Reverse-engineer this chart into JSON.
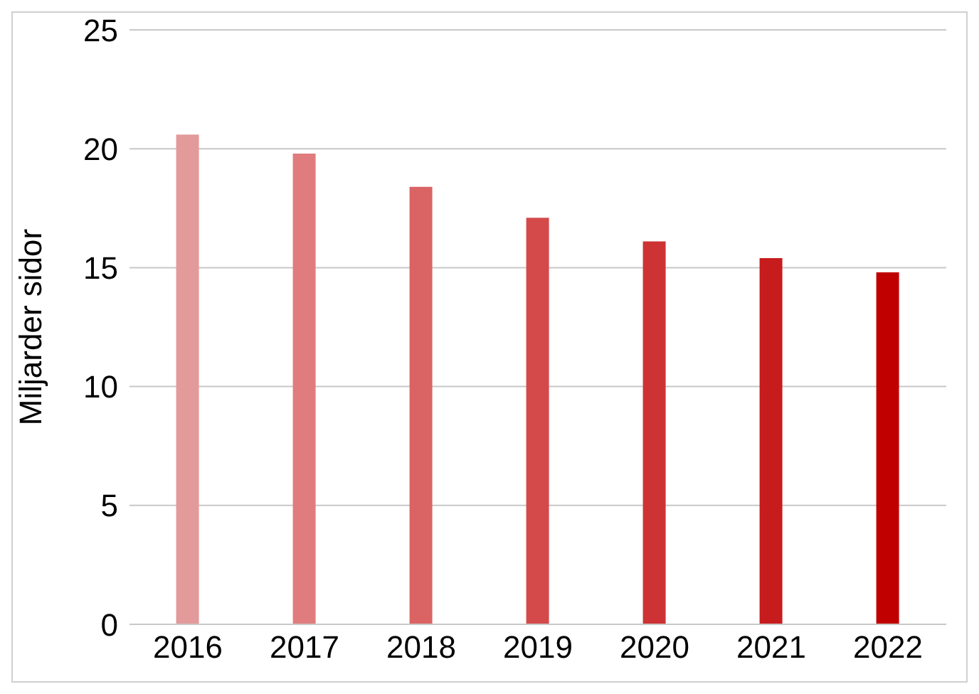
{
  "chart_data": {
    "type": "bar",
    "ylabel": "Miljarder sidor",
    "categories": [
      "2016",
      "2017",
      "2018",
      "2019",
      "2020",
      "2021",
      "2022"
    ],
    "values": [
      20.6,
      19.8,
      18.4,
      17.1,
      16.1,
      15.4,
      14.8
    ],
    "colors": [
      "#e39a9a",
      "#e07c7d",
      "#da6364",
      "#d44a4b",
      "#cd3334",
      "#c71c1d",
      "#c00000"
    ],
    "ylim": [
      0,
      25
    ],
    "yticks": [
      0,
      5,
      10,
      15,
      20,
      25
    ],
    "grid": "y"
  }
}
